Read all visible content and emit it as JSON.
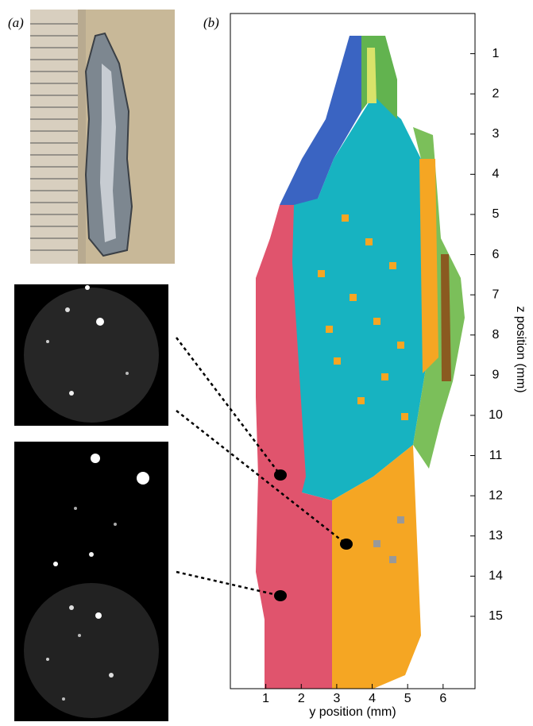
{
  "panel_a": {
    "label": "(a)"
  },
  "panel_b": {
    "label": "(b)",
    "x_label": "y position (mm)",
    "y_label": "z position (mm)",
    "xlim": [
      0,
      6.9
    ],
    "ylim": [
      0,
      16.8
    ],
    "xticks": [
      1,
      2,
      3,
      4,
      5,
      6
    ],
    "yticks": [
      1,
      2,
      3,
      4,
      5,
      6,
      7,
      8,
      9,
      10,
      11,
      12,
      13,
      14,
      15
    ]
  }
}
